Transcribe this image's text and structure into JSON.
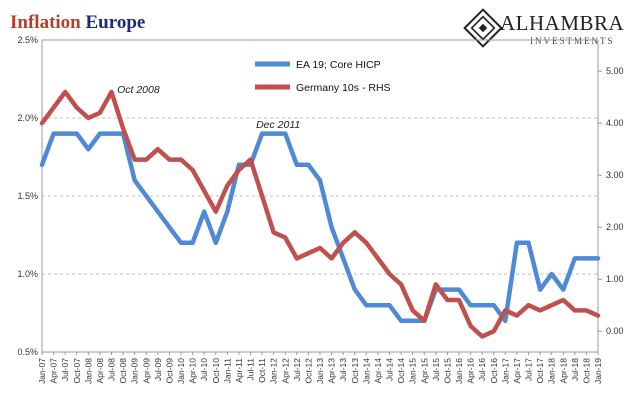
{
  "header": {
    "title_part1": "Inflation",
    "title_part2": "Europe",
    "brand_name": "ALHAMBRA",
    "brand_sub": "INVESTMENTS",
    "brand_icon": "diamond-lattice-icon"
  },
  "chart_data": {
    "type": "line",
    "x": [
      "Jan-07",
      "Apr-07",
      "Jul-07",
      "Oct-07",
      "Jan-08",
      "Apr-08",
      "Jul-08",
      "Oct-08",
      "Jan-09",
      "Apr-09",
      "Jul-09",
      "Oct-09",
      "Jan-10",
      "Apr-10",
      "Jul-10",
      "Oct-10",
      "Jan-11",
      "Apr-11",
      "Jul-11",
      "Oct-11",
      "Jan-12",
      "Apr-12",
      "Jul-12",
      "Oct-12",
      "Jan-13",
      "Apr-13",
      "Jul-13",
      "Oct-13",
      "Jan-14",
      "Apr-14",
      "Jul-14",
      "Oct-14",
      "Jan-15",
      "Apr-15",
      "Jul-15",
      "Oct-15",
      "Jan-16",
      "Apr-16",
      "Jul-16",
      "Oct-16",
      "Jan-17",
      "Apr-17",
      "Jul-17",
      "Oct-17",
      "Jan-18",
      "Apr-18",
      "Jul-18",
      "Oct-18",
      "Jan-19"
    ],
    "series": [
      {
        "name": "EA 19; Core HICP",
        "axis": "left",
        "color": "#4f8ad6",
        "values": [
          1.7,
          1.9,
          1.9,
          1.9,
          1.8,
          1.9,
          1.9,
          1.9,
          1.6,
          1.5,
          1.4,
          1.3,
          1.2,
          1.2,
          1.4,
          1.2,
          1.4,
          1.7,
          1.7,
          1.9,
          1.9,
          1.9,
          1.7,
          1.7,
          1.6,
          1.3,
          1.1,
          0.9,
          0.8,
          0.8,
          0.8,
          0.7,
          0.7,
          0.7,
          0.9,
          0.9,
          0.9,
          0.8,
          0.8,
          0.8,
          0.7,
          1.2,
          1.2,
          0.9,
          1.0,
          0.9,
          1.1,
          1.1,
          1.1
        ]
      },
      {
        "name": "Germany 10s - RHS",
        "axis": "right",
        "color": "#c0504d",
        "values": [
          4.0,
          4.3,
          4.6,
          4.3,
          4.1,
          4.2,
          4.6,
          3.9,
          3.3,
          3.3,
          3.5,
          3.3,
          3.3,
          3.1,
          2.7,
          2.3,
          2.8,
          3.1,
          3.3,
          2.6,
          1.9,
          1.8,
          1.4,
          1.5,
          1.6,
          1.4,
          1.7,
          1.9,
          1.7,
          1.4,
          1.1,
          0.9,
          0.4,
          0.2,
          0.9,
          0.6,
          0.6,
          0.1,
          -0.1,
          0.0,
          0.4,
          0.3,
          0.5,
          0.4,
          0.5,
          0.6,
          0.4,
          0.4,
          0.3
        ]
      }
    ],
    "y_left": {
      "min": 0.5,
      "max": 2.5,
      "ticks": [
        "0.5%",
        "1.0%",
        "1.5%",
        "2.0%",
        "2.5%"
      ]
    },
    "y_right": {
      "min": -0.4,
      "max": 5.6,
      "ticks": [
        "0.00",
        "1.00",
        "2.00",
        "3.00",
        "4.00",
        "5.00"
      ]
    },
    "annotations": [
      {
        "text": "Oct 2008",
        "x": "Oct-08"
      },
      {
        "text": "Dec 2011",
        "x": "Oct-11"
      }
    ],
    "legend_position": "top-center",
    "grid": "horizontal dashed"
  }
}
